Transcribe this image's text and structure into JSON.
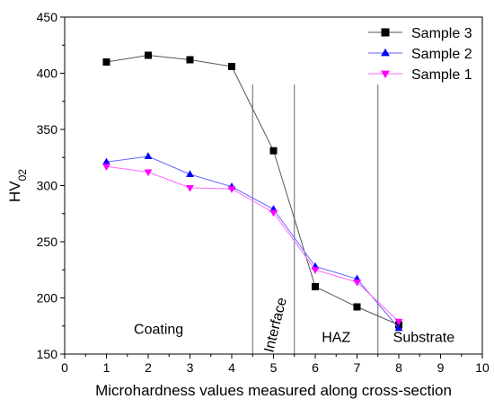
{
  "chart_data": {
    "type": "line",
    "xlabel": "Microhardness values measured along cross-section",
    "ylabel_main": "HV",
    "ylabel_sub": "02",
    "xlim": [
      0,
      10
    ],
    "ylim": [
      150,
      450
    ],
    "x_ticks": [
      0,
      1,
      2,
      3,
      4,
      5,
      6,
      7,
      8,
      9,
      10
    ],
    "y_ticks": [
      150,
      200,
      250,
      300,
      350,
      400,
      450
    ],
    "grid": false,
    "legend_position": "top-right",
    "boundaries_x": [
      4.5,
      5.5,
      7.5
    ],
    "boundary_top_y": 390,
    "region_labels": [
      {
        "text": "Coating",
        "x": 2.25,
        "y": 168
      },
      {
        "text": "Interface",
        "x": 5.15,
        "y": 175,
        "rotated": true
      },
      {
        "text": "HAZ",
        "x": 6.5,
        "y": 161
      },
      {
        "text": "Substrate",
        "x": 8.6,
        "y": 161
      }
    ],
    "series": [
      {
        "name": "Sample 3",
        "color": "#000000",
        "line_color": "#555555",
        "marker": "square",
        "x": [
          1,
          2,
          3,
          4,
          5,
          6,
          7,
          8
        ],
        "values": [
          410,
          416,
          412,
          406,
          331,
          210,
          192,
          176
        ]
      },
      {
        "name": "Sample 2",
        "color": "#0000ff",
        "line_color": "#6666ff",
        "marker": "triangle-up",
        "x": [
          1,
          2,
          3,
          4,
          5,
          6,
          7,
          8
        ],
        "values": [
          321,
          326,
          310,
          299,
          279,
          228,
          217,
          173
        ]
      },
      {
        "name": "Sample 1",
        "color": "#ff00ff",
        "line_color": "#ff66ff",
        "marker": "triangle-down",
        "x": [
          1,
          2,
          3,
          4,
          5,
          6,
          7,
          8
        ],
        "values": [
          317,
          312,
          298,
          297,
          276,
          225,
          214,
          179
        ]
      }
    ]
  }
}
